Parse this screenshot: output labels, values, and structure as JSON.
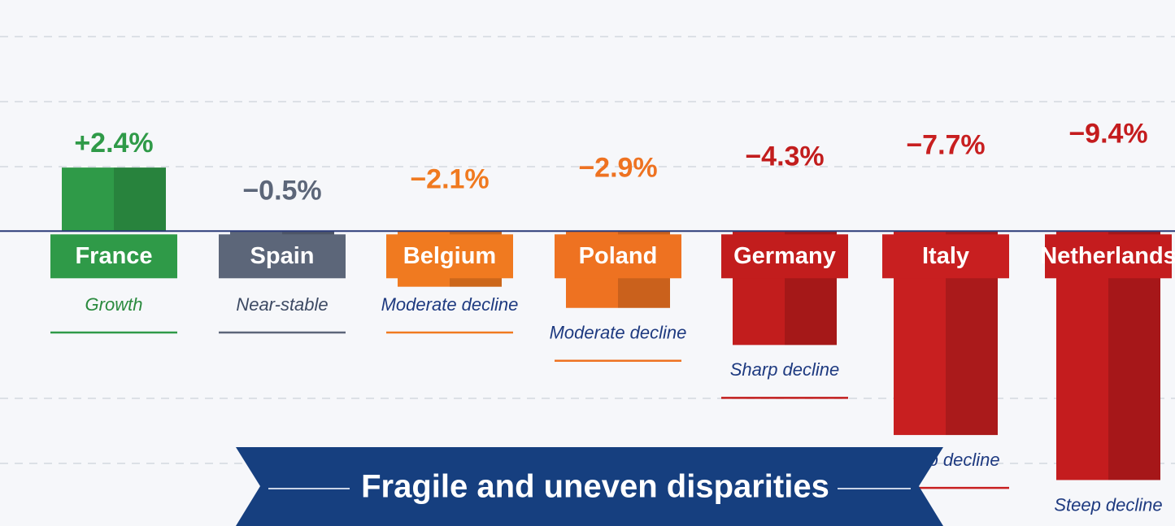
{
  "chart_data": {
    "type": "bar",
    "categories": [
      "France",
      "Spain",
      "Belgium",
      "Poland",
      "Germany",
      "Italy",
      "Netherlands"
    ],
    "values": [
      2.4,
      -0.5,
      -2.1,
      -2.9,
      -4.3,
      -7.7,
      -9.4
    ],
    "value_labels": [
      "+2.4%",
      "−0.5%",
      "−2.1%",
      "−2.9%",
      "−4.3%",
      "−7.7%",
      "−9.4%"
    ],
    "descriptors": [
      "Growth",
      "Near-stable",
      "Moderate decline",
      "Moderate decline",
      "Sharp decline",
      "Steep decline",
      "Steep decline"
    ],
    "colors": [
      "#2f9a48",
      "#5c6679",
      "#f07a20",
      "#ee7221",
      "#c21d1d",
      "#c81f20",
      "#c41c1e"
    ],
    "descriptor_colors": [
      "#2a8a3e",
      "#3d4a63",
      "#1e3a80",
      "#1e3a80",
      "#1e3a80",
      "#1e3a80",
      "#1e3a80"
    ],
    "ylim": [
      -10,
      7.5
    ],
    "banner": "Fragile and uneven disparities"
  }
}
